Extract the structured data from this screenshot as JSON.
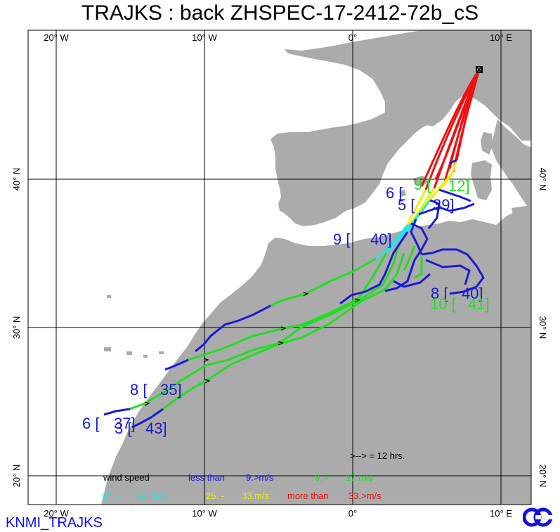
{
  "title": "TRAJKS : back ZHSPEC-17-2412-72b_cS",
  "credit": "KNMI_TRAJKS",
  "lon_labels": [
    "20° W",
    "10° W",
    "0°",
    "10° E"
  ],
  "lat_labels": [
    "40° N",
    "30° N",
    "20° N"
  ],
  "arrow_note": ">--> = 12 hrs.",
  "legend": {
    "heading": "wind speed",
    "classes": [
      {
        "label": "less than",
        "value": "9.>m/s",
        "color": "#1a1ad6"
      },
      {
        "label": "9. -",
        "value": "17.m/s",
        "color": "#22dd22"
      },
      {
        "label": "17. -",
        "value": "25.m/s",
        "color": "#22e6e6"
      },
      {
        "label": "25. -",
        "value": "33.m/s",
        "color": "#f0f000"
      },
      {
        "label": "more than",
        "value": "33.>m/s",
        "color": "#ee1111"
      }
    ]
  },
  "trajectory_labels": [
    {
      "text": "6 [",
      "color": "#1a1ad6"
    },
    {
      "text": "9 [",
      "color": "#22dd22"
    },
    {
      "text": "12]",
      "color": "#22dd22"
    },
    {
      "text": "5 [",
      "color": "#1a1ad6"
    },
    {
      "text": "39]",
      "color": "#1a1ad6"
    },
    {
      "text": "9 [",
      "color": "#1a1ad6"
    },
    {
      "text": "40]",
      "color": "#1a1ad6"
    },
    {
      "text": "8 [",
      "color": "#1a1ad6"
    },
    {
      "text": "40]",
      "color": "#1a1ad6"
    },
    {
      "text": "10 [",
      "color": "#22dd22"
    },
    {
      "text": "41]",
      "color": "#22dd22"
    },
    {
      "text": "8 [",
      "color": "#1a1ad6"
    },
    {
      "text": "35]",
      "color": "#1a1ad6"
    },
    {
      "text": "6 [",
      "color": "#1a1ad6"
    },
    {
      "text": "37]",
      "color": "#1a1ad6"
    },
    {
      "text": "3 [",
      "color": "#1a1ad6"
    },
    {
      "text": "43]",
      "color": "#1a1ad6"
    }
  ],
  "colors": {
    "land": "#ababab",
    "sea": "#ffffff",
    "grid": "#000000",
    "low_wind": "#1a1ad6",
    "moderate_wind": "#22dd22",
    "strong_wind": "#22e6e6",
    "very_strong_wind": "#f0f000",
    "extreme_wind": "#ee1111"
  }
}
